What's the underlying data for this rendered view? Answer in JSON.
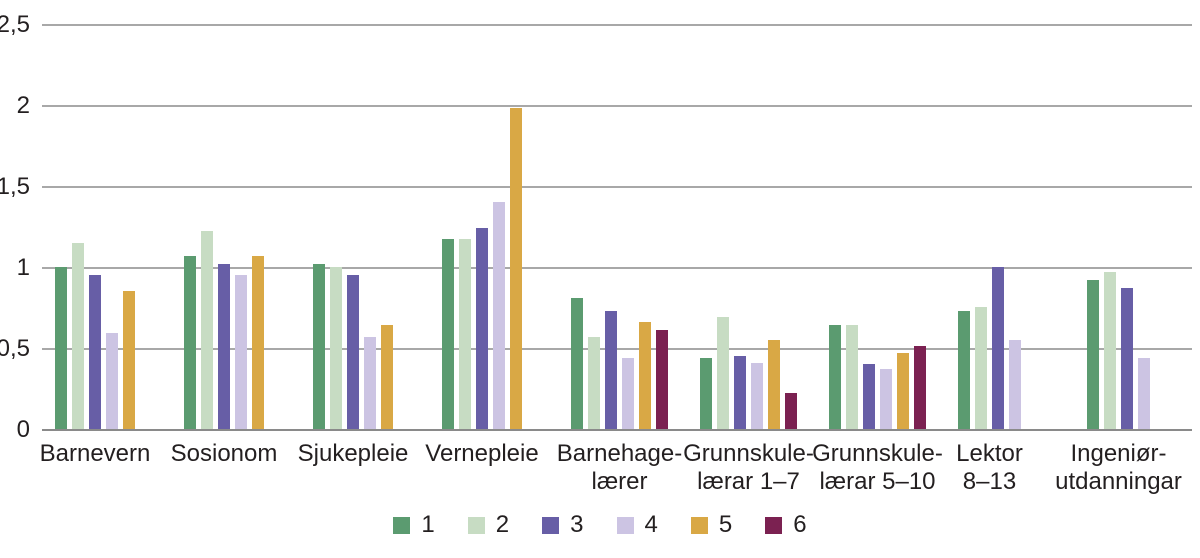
{
  "chart_data": {
    "type": "bar",
    "title": "",
    "xlabel": "",
    "ylabel": "",
    "ylim": [
      0,
      2.5
    ],
    "grid": true,
    "legend_position": "bottom",
    "yticks": [
      {
        "value": 0,
        "label": "0"
      },
      {
        "value": 0.5,
        "label": "0,5"
      },
      {
        "value": 1,
        "label": "1"
      },
      {
        "value": 1.5,
        "label": "1,5"
      },
      {
        "value": 2,
        "label": "2"
      },
      {
        "value": 2.5,
        "label": "2,5"
      }
    ],
    "categories": [
      {
        "label": "Barnevern",
        "lines": [
          "Barnevern"
        ]
      },
      {
        "label": "Sosionom",
        "lines": [
          "Sosionom"
        ]
      },
      {
        "label": "Sjukepleie",
        "lines": [
          "Sjukepleie"
        ]
      },
      {
        "label": "Vernepleie",
        "lines": [
          "Vernepleie"
        ]
      },
      {
        "label": "Barnehagelærer",
        "lines": [
          "Barnehage-",
          "lærer"
        ]
      },
      {
        "label": "Grunnskulelærar 1–7",
        "lines": [
          "Grunnskule-",
          "lærar 1–7"
        ]
      },
      {
        "label": "Grunnskulelærar 5–10",
        "lines": [
          "Grunnskule-",
          "lærar 5–10"
        ]
      },
      {
        "label": "Lektor 8–13",
        "lines": [
          "Lektor",
          "8–13"
        ]
      },
      {
        "label": "Ingeniørutdanningar",
        "lines": [
          "Ingeniør-",
          "utdanningar"
        ]
      }
    ],
    "series": [
      {
        "name": "1",
        "color": "#5b9b70",
        "values": [
          1.0,
          1.07,
          1.02,
          1.17,
          0.81,
          0.44,
          0.64,
          0.73,
          0.92
        ]
      },
      {
        "name": "2",
        "color": "#c7dcc3",
        "values": [
          1.15,
          1.22,
          1.0,
          1.17,
          0.57,
          0.69,
          0.64,
          0.75,
          0.97
        ]
      },
      {
        "name": "3",
        "color": "#675ea6",
        "values": [
          0.95,
          1.02,
          0.95,
          1.24,
          0.73,
          0.45,
          0.4,
          1.0,
          0.87
        ]
      },
      {
        "name": "4",
        "color": "#ccc4e3",
        "values": [
          0.59,
          0.95,
          0.57,
          1.4,
          0.44,
          0.41,
          0.37,
          0.55,
          0.44
        ]
      },
      {
        "name": "5",
        "color": "#d9a845",
        "values": [
          0.85,
          1.07,
          0.64,
          1.98,
          0.66,
          0.55,
          0.47,
          null,
          null
        ]
      },
      {
        "name": "6",
        "color": "#7b2151",
        "values": [
          null,
          null,
          null,
          null,
          0.61,
          0.22,
          0.51,
          null,
          null
        ]
      }
    ],
    "colors": {
      "gridline": "#a8a8a8",
      "axis_line": "#8a8a8a",
      "text": "#231f20"
    }
  }
}
